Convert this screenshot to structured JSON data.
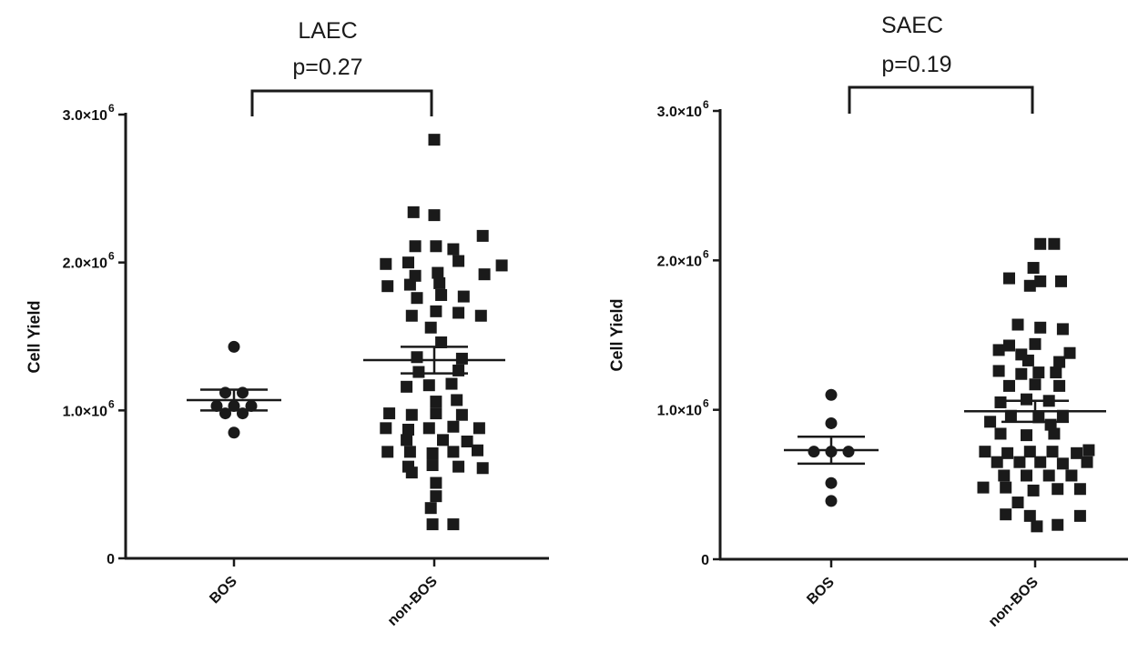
{
  "chart_data": [
    {
      "type": "scatter",
      "title": "LAEC",
      "subtitle": "p=0.27",
      "xlabel": "",
      "ylabel": "Cell  Yield",
      "ylim": [
        0,
        3000000
      ],
      "yticks": [
        {
          "value": 0,
          "label": "0",
          "exp": ""
        },
        {
          "value": 1000000,
          "label": "1.0×10",
          "exp": "6"
        },
        {
          "value": 2000000,
          "label": "2.0×10",
          "exp": "6"
        },
        {
          "value": 3000000,
          "label": "3.0×10",
          "exp": "6"
        }
      ],
      "categories": [
        "BOS",
        "non-BOS"
      ],
      "colors": {
        "marker": "#1a1a1a",
        "axis": "#1a1a1a"
      },
      "series": [
        {
          "category": "BOS",
          "marker": "circle",
          "mean": 1070000,
          "sem_low": 1000000,
          "sem_high": 1140000,
          "points": [
            {
              "dx": 0,
              "y": 1430000
            },
            {
              "dx": -0.5,
              "y": 1120000
            },
            {
              "dx": 0.5,
              "y": 1120000
            },
            {
              "dx": -1,
              "y": 1030000
            },
            {
              "dx": 0,
              "y": 1030000
            },
            {
              "dx": 1,
              "y": 1030000
            },
            {
              "dx": -0.5,
              "y": 980000
            },
            {
              "dx": 0.5,
              "y": 980000
            },
            {
              "dx": 0,
              "y": 850000
            }
          ]
        },
        {
          "category": "non-BOS",
          "marker": "square",
          "mean": 1340000,
          "sem_low": 1250000,
          "sem_high": 1430000,
          "points": [
            {
              "dx": 0,
              "y": 2830000
            },
            {
              "dx": -1.2,
              "y": 2340000
            },
            {
              "dx": 0,
              "y": 2320000
            },
            {
              "dx": 2.8,
              "y": 2180000
            },
            {
              "dx": -1.1,
              "y": 2110000
            },
            {
              "dx": 0.1,
              "y": 2110000
            },
            {
              "dx": 1.1,
              "y": 2090000
            },
            {
              "dx": -2.8,
              "y": 1990000
            },
            {
              "dx": -1.5,
              "y": 2000000
            },
            {
              "dx": 1.4,
              "y": 2010000
            },
            {
              "dx": 3.9,
              "y": 1980000
            },
            {
              "dx": -1.1,
              "y": 1910000
            },
            {
              "dx": 0.2,
              "y": 1930000
            },
            {
              "dx": 2.9,
              "y": 1920000
            },
            {
              "dx": -2.7,
              "y": 1840000
            },
            {
              "dx": -1.4,
              "y": 1850000
            },
            {
              "dx": 0.3,
              "y": 1860000
            },
            {
              "dx": -1.0,
              "y": 1760000
            },
            {
              "dx": 0.4,
              "y": 1780000
            },
            {
              "dx": 1.7,
              "y": 1770000
            },
            {
              "dx": -1.3,
              "y": 1640000
            },
            {
              "dx": 0.1,
              "y": 1670000
            },
            {
              "dx": 1.4,
              "y": 1660000
            },
            {
              "dx": 2.7,
              "y": 1640000
            },
            {
              "dx": -0.2,
              "y": 1560000
            },
            {
              "dx": 0.4,
              "y": 1460000
            },
            {
              "dx": -1.0,
              "y": 1360000
            },
            {
              "dx": 1.6,
              "y": 1350000
            },
            {
              "dx": -0.9,
              "y": 1260000
            },
            {
              "dx": 1.4,
              "y": 1270000
            },
            {
              "dx": -1.6,
              "y": 1160000
            },
            {
              "dx": -0.3,
              "y": 1170000
            },
            {
              "dx": 1.0,
              "y": 1180000
            },
            {
              "dx": 0.1,
              "y": 1060000
            },
            {
              "dx": 1.3,
              "y": 1070000
            },
            {
              "dx": -2.6,
              "y": 980000
            },
            {
              "dx": -1.3,
              "y": 970000
            },
            {
              "dx": 0.1,
              "y": 980000
            },
            {
              "dx": 1.6,
              "y": 970000
            },
            {
              "dx": -2.8,
              "y": 880000
            },
            {
              "dx": -1.5,
              "y": 870000
            },
            {
              "dx": -0.3,
              "y": 880000
            },
            {
              "dx": 1.1,
              "y": 890000
            },
            {
              "dx": 2.6,
              "y": 880000
            },
            {
              "dx": -1.6,
              "y": 800000
            },
            {
              "dx": 0.5,
              "y": 800000
            },
            {
              "dx": 1.9,
              "y": 790000
            },
            {
              "dx": -2.7,
              "y": 720000
            },
            {
              "dx": -1.4,
              "y": 720000
            },
            {
              "dx": -0.1,
              "y": 710000
            },
            {
              "dx": 1.1,
              "y": 720000
            },
            {
              "dx": 2.5,
              "y": 730000
            },
            {
              "dx": -1.5,
              "y": 620000
            },
            {
              "dx": -0.1,
              "y": 630000
            },
            {
              "dx": 1.4,
              "y": 620000
            },
            {
              "dx": 2.8,
              "y": 610000
            },
            {
              "dx": -1.3,
              "y": 580000
            },
            {
              "dx": 0.1,
              "y": 510000
            },
            {
              "dx": 0.1,
              "y": 420000
            },
            {
              "dx": -0.2,
              "y": 340000
            },
            {
              "dx": -0.1,
              "y": 230000
            },
            {
              "dx": 1.1,
              "y": 230000
            }
          ]
        }
      ],
      "significance": {
        "from": "BOS",
        "to": "non-BOS",
        "label": "p=0.27"
      }
    },
    {
      "type": "scatter",
      "title": "SAEC",
      "subtitle": "p=0.19",
      "xlabel": "",
      "ylabel": "Cell  Yield",
      "ylim": [
        0,
        3000000
      ],
      "yticks": [
        {
          "value": 0,
          "label": "0",
          "exp": ""
        },
        {
          "value": 1000000,
          "label": "1.0×10",
          "exp": "6"
        },
        {
          "value": 2000000,
          "label": "2.0×10",
          "exp": "6"
        },
        {
          "value": 3000000,
          "label": "3.0×10",
          "exp": "6"
        }
      ],
      "categories": [
        "BOS",
        "non-BOS"
      ],
      "colors": {
        "marker": "#1a1a1a",
        "axis": "#1a1a1a"
      },
      "series": [
        {
          "category": "BOS",
          "marker": "circle",
          "mean": 730000,
          "sem_low": 640000,
          "sem_high": 820000,
          "points": [
            {
              "dx": 0,
              "y": 1100000
            },
            {
              "dx": 0,
              "y": 910000
            },
            {
              "dx": -1,
              "y": 720000
            },
            {
              "dx": 0,
              "y": 720000
            },
            {
              "dx": 1,
              "y": 720000
            },
            {
              "dx": 0,
              "y": 510000
            },
            {
              "dx": 0,
              "y": 390000
            }
          ]
        },
        {
          "category": "non-BOS",
          "marker": "square",
          "mean": 990000,
          "sem_low": 920000,
          "sem_high": 1060000,
          "points": [
            {
              "dx": 0.3,
              "y": 2110000
            },
            {
              "dx": 1.1,
              "y": 2110000
            },
            {
              "dx": -0.1,
              "y": 1950000
            },
            {
              "dx": -1.5,
              "y": 1880000
            },
            {
              "dx": 0.3,
              "y": 1860000
            },
            {
              "dx": 1.5,
              "y": 1860000
            },
            {
              "dx": -0.3,
              "y": 1830000
            },
            {
              "dx": -1.0,
              "y": 1570000
            },
            {
              "dx": 0.3,
              "y": 1550000
            },
            {
              "dx": 1.6,
              "y": 1540000
            },
            {
              "dx": -1.5,
              "y": 1430000
            },
            {
              "dx": 0.0,
              "y": 1440000
            },
            {
              "dx": -2.1,
              "y": 1400000
            },
            {
              "dx": -0.8,
              "y": 1370000
            },
            {
              "dx": 2.0,
              "y": 1380000
            },
            {
              "dx": -0.4,
              "y": 1330000
            },
            {
              "dx": 1.4,
              "y": 1320000
            },
            {
              "dx": -2.1,
              "y": 1260000
            },
            {
              "dx": -0.8,
              "y": 1240000
            },
            {
              "dx": 0.2,
              "y": 1250000
            },
            {
              "dx": 1.2,
              "y": 1250000
            },
            {
              "dx": -1.5,
              "y": 1160000
            },
            {
              "dx": 0.0,
              "y": 1170000
            },
            {
              "dx": 1.4,
              "y": 1160000
            },
            {
              "dx": -2.0,
              "y": 1050000
            },
            {
              "dx": -0.5,
              "y": 1070000
            },
            {
              "dx": 0.8,
              "y": 1060000
            },
            {
              "dx": -1.4,
              "y": 960000
            },
            {
              "dx": 0.2,
              "y": 950000
            },
            {
              "dx": 1.6,
              "y": 960000
            },
            {
              "dx": -2.6,
              "y": 920000
            },
            {
              "dx": 0.9,
              "y": 900000
            },
            {
              "dx": -2.0,
              "y": 840000
            },
            {
              "dx": -0.5,
              "y": 830000
            },
            {
              "dx": 1.1,
              "y": 840000
            },
            {
              "dx": -2.9,
              "y": 720000
            },
            {
              "dx": -1.6,
              "y": 710000
            },
            {
              "dx": -0.3,
              "y": 720000
            },
            {
              "dx": 1.0,
              "y": 720000
            },
            {
              "dx": 2.4,
              "y": 710000
            },
            {
              "dx": 3.1,
              "y": 730000
            },
            {
              "dx": -2.2,
              "y": 650000
            },
            {
              "dx": -0.9,
              "y": 650000
            },
            {
              "dx": 0.3,
              "y": 650000
            },
            {
              "dx": 1.6,
              "y": 640000
            },
            {
              "dx": 3.0,
              "y": 650000
            },
            {
              "dx": -1.8,
              "y": 560000
            },
            {
              "dx": -0.5,
              "y": 560000
            },
            {
              "dx": 0.8,
              "y": 560000
            },
            {
              "dx": 2.1,
              "y": 560000
            },
            {
              "dx": -3.0,
              "y": 480000
            },
            {
              "dx": -1.7,
              "y": 480000
            },
            {
              "dx": -0.1,
              "y": 460000
            },
            {
              "dx": 1.3,
              "y": 470000
            },
            {
              "dx": 2.6,
              "y": 470000
            },
            {
              "dx": -1.0,
              "y": 380000
            },
            {
              "dx": -1.7,
              "y": 300000
            },
            {
              "dx": -0.3,
              "y": 290000
            },
            {
              "dx": 2.6,
              "y": 290000
            },
            {
              "dx": 0.1,
              "y": 220000
            },
            {
              "dx": 1.3,
              "y": 230000
            }
          ]
        }
      ],
      "significance": {
        "from": "BOS",
        "to": "non-BOS",
        "label": "p=0.19"
      }
    }
  ]
}
